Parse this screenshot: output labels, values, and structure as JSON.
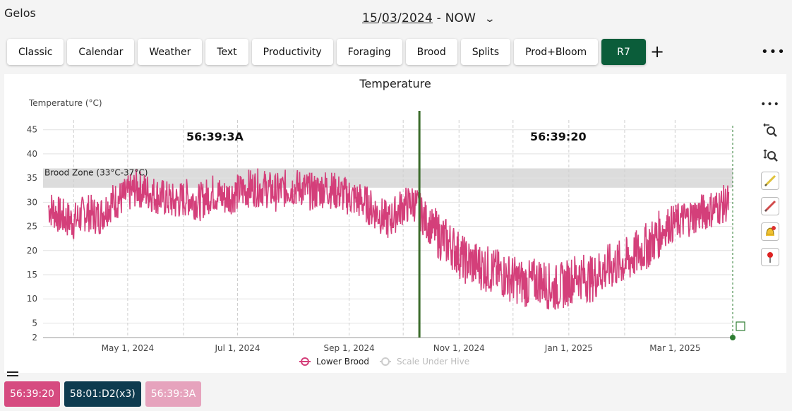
{
  "app": {
    "title": "Gelos"
  },
  "date_range": {
    "part1": "15",
    "sep1": "/",
    "part2": "03",
    "sep2": "/",
    "part3": "2024",
    "rest": " - NOW"
  },
  "tabs": [
    {
      "label": "Classic"
    },
    {
      "label": "Calendar"
    },
    {
      "label": "Weather"
    },
    {
      "label": "Text"
    },
    {
      "label": "Productivity"
    },
    {
      "label": "Foraging"
    },
    {
      "label": "Brood"
    },
    {
      "label": "Splits"
    },
    {
      "label": "Prod+Bloom"
    },
    {
      "label": "R7",
      "active": true
    }
  ],
  "toolbar": {
    "add_label": "+",
    "more_label": "•••"
  },
  "sidebar": {
    "more_label": "•••"
  },
  "chips": [
    {
      "label": "56:39:20",
      "color": "#d64b80"
    },
    {
      "label": "58:01:D2(x3)",
      "color": "#0e3b4f"
    },
    {
      "label": "56:39:3A",
      "color": "#e6a3bd"
    }
  ],
  "colors": {
    "series": "#d43f7a",
    "brood_zone": "#dcdcdc",
    "marker": "#3a6b2a",
    "active_tab": "#0b5d3a"
  },
  "chart_data": {
    "type": "line",
    "title": "Temperature",
    "ylabel": "Temperature (°C)",
    "ylim": [
      2,
      47
    ],
    "yticks": [
      2,
      5,
      10,
      15,
      20,
      25,
      30,
      35,
      40,
      45
    ],
    "xlim": [
      "2024-03-15",
      "2025-04-02"
    ],
    "xticks": [
      {
        "date": "2024-05-01",
        "label": "May 1, 2024"
      },
      {
        "date": "2024-07-01",
        "label": "Jul 1, 2024"
      },
      {
        "date": "2024-09-01",
        "label": "Sep 1, 2024"
      },
      {
        "date": "2024-11-01",
        "label": "Nov 1, 2024"
      },
      {
        "date": "2025-01-01",
        "label": "Jan 1, 2025"
      },
      {
        "date": "2025-03-01",
        "label": "Mar 1, 2025"
      }
    ],
    "grid": true,
    "brood_zone": {
      "label": "Brood Zone (33°C-37°C)",
      "min": 33,
      "max": 37
    },
    "markers": [
      {
        "date": "2024-10-10",
        "label_before": "56:39:3A",
        "label_after": "56:39:20"
      }
    ],
    "legend": {
      "position": "bottom",
      "items": [
        {
          "name": "Lower Brood",
          "enabled": true
        },
        {
          "name": "Scale Under Hive",
          "enabled": false
        }
      ]
    },
    "series": [
      {
        "name": "Lower Brood",
        "x": [
          "2024-03-18",
          "2024-03-25",
          "2024-04-01",
          "2024-04-08",
          "2024-04-15",
          "2024-04-22",
          "2024-04-29",
          "2024-05-06",
          "2024-05-13",
          "2024-05-20",
          "2024-05-27",
          "2024-06-03",
          "2024-06-10",
          "2024-06-17",
          "2024-06-24",
          "2024-07-01",
          "2024-07-08",
          "2024-07-15",
          "2024-07-22",
          "2024-07-29",
          "2024-08-05",
          "2024-08-12",
          "2024-08-19",
          "2024-08-26",
          "2024-09-02",
          "2024-09-09",
          "2024-09-16",
          "2024-09-23",
          "2024-09-30",
          "2024-10-07",
          "2024-10-14",
          "2024-10-21",
          "2024-10-28",
          "2024-11-04",
          "2024-11-11",
          "2024-11-18",
          "2024-11-25",
          "2024-12-02",
          "2024-12-09",
          "2024-12-16",
          "2024-12-23",
          "2024-12-30",
          "2025-01-06",
          "2025-01-13",
          "2025-01-20",
          "2025-01-27",
          "2025-02-03",
          "2025-02-10",
          "2025-02-17",
          "2025-02-24",
          "2025-03-03",
          "2025-03-10",
          "2025-03-17",
          "2025-03-24",
          "2025-03-31"
        ],
        "values": [
          29,
          27,
          26,
          28,
          27,
          30,
          31,
          33,
          32,
          31,
          30,
          31,
          30,
          32,
          31,
          32,
          33,
          33,
          32,
          33,
          33,
          32,
          33,
          32,
          31,
          30,
          28,
          26,
          29,
          30,
          26,
          23,
          21,
          18,
          17,
          16,
          15,
          14,
          13,
          14,
          12,
          13,
          15,
          14,
          16,
          17,
          18,
          20,
          22,
          25,
          26,
          27,
          28,
          29,
          30
        ]
      }
    ]
  }
}
